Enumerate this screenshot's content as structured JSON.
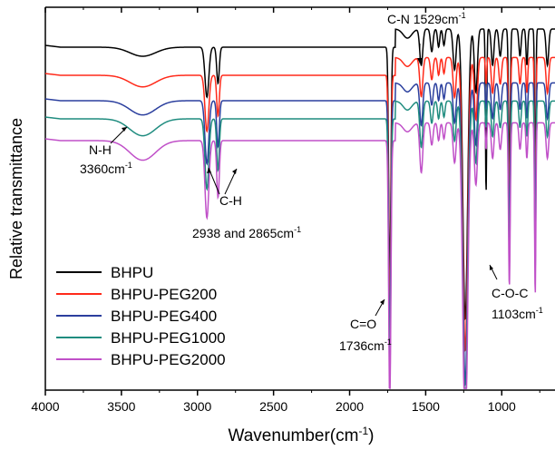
{
  "chart_data": {
    "type": "line",
    "title": "",
    "xlabel": "Wavenumber(cm",
    "xlabel_sup": "-1",
    "xlabel_close": ")",
    "ylabel": "Relative transmittance",
    "x_reversed": true,
    "xlim": [
      4000,
      650
    ],
    "xticks": [
      "4000",
      "3500",
      "3000",
      "2500",
      "2000",
      "1500",
      "1000"
    ],
    "y_ticks_shown": false,
    "legend": {
      "placement": "bottom-left",
      "entries": [
        "BHPU",
        "BHPU-PEG200",
        "BHPU-PEG400",
        "BHPU-PEG1000",
        "BHPU-PEG2000"
      ]
    },
    "series": [
      {
        "name": "BHPU",
        "color": "#000000",
        "baseline": 10,
        "depth": 1.0
      },
      {
        "name": "BHPU-PEG200",
        "color": "#ff2a1a",
        "baseline": 8.6,
        "depth": 1.0
      },
      {
        "name": "BHPU-PEG400",
        "color": "#2b3f9e",
        "baseline": 7.9,
        "depth": 1.0
      },
      {
        "name": "BHPU-PEG1000",
        "color": "#1f8c7f",
        "baseline": 7.2,
        "depth": 1.0
      },
      {
        "name": "BHPU-PEG2000",
        "color": "#c050c8",
        "baseline": 6.5,
        "depth": 1.0
      }
    ],
    "peaks_wavenumber": [
      3360,
      2938,
      2865,
      1736,
      1529,
      1240,
      1103,
      950,
      780
    ],
    "annotations": [
      {
        "text": "N-H",
        "sub": "3360cm",
        "sup": "-1"
      },
      {
        "text": "C-H",
        "sub": "2938 and 2865cm",
        "sup": "-1"
      },
      {
        "text": "C-N 1529cm",
        "sup": "-1"
      },
      {
        "text": "C=O",
        "sub": "1736cm",
        "sup": "-1"
      },
      {
        "text": "C-O-C",
        "sub": "1103cm",
        "sup": "-1"
      }
    ]
  }
}
